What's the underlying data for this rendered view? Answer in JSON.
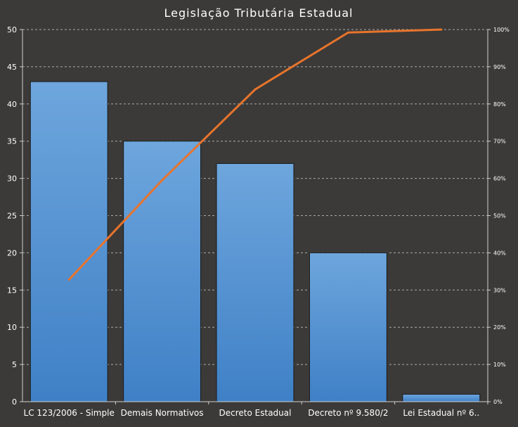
{
  "chart_data": {
    "type": "bar",
    "title": "Legislação Tributária Estadual",
    "categories": [
      "LC 123/2006  - Simple",
      "Demais Normativos",
      "Decreto Estadual",
      "Decreto nº 9.580/2",
      "Lei Estadual nº 6.."
    ],
    "values": [
      43,
      35,
      32,
      20,
      1
    ],
    "ylim": [
      0,
      50
    ],
    "yticks": [
      "0",
      "5",
      "10",
      "15",
      "20",
      "25",
      "30",
      "35",
      "40",
      "45",
      "50"
    ],
    "y2lim": [
      0,
      100
    ],
    "y2ticks": [
      "0%",
      "10%",
      "20%",
      "30%",
      "40%",
      "50%",
      "60%",
      "70%",
      "80%",
      "90%",
      "100%"
    ],
    "cumulative_percent": [
      32.8,
      59.5,
      83.9,
      99.2,
      100
    ],
    "grid": true,
    "colors": {
      "background": "#3b3a38",
      "bar_top": "#6ea6dd",
      "bar_bottom": "#3f80c6",
      "bar_edge": "#1a1a1a",
      "line": "#e8742c",
      "grid": "#d0d0d0",
      "text": "#ffffff"
    }
  }
}
